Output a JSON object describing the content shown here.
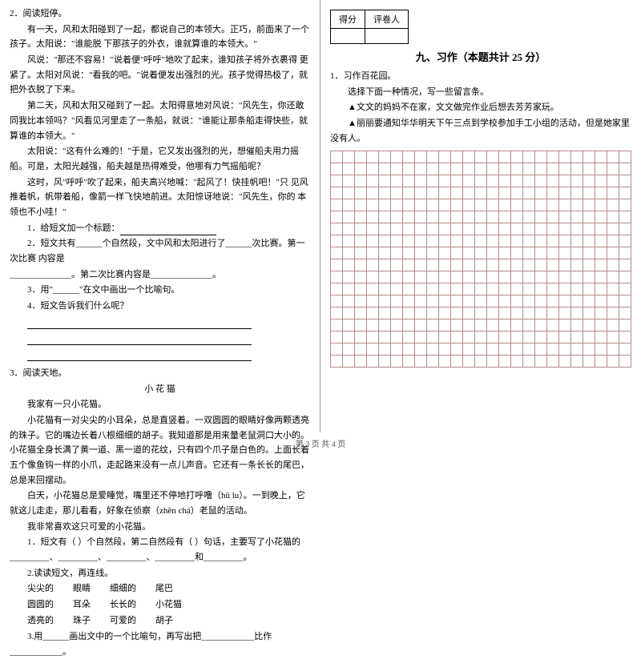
{
  "left": {
    "q2_title": "2．阅读短停。",
    "p1": "有一天，风和太阳碰到了一起，都说自己的本领大。正巧，前面来了一个 孩子。太阳说：\"谁能脱 下那孩子的外衣，谁就算谁的本领大。\"",
    "p2": "风说：\"那还不容易！\"说着便\"呼呼\"地吹了起来，谁知孩子将外衣裹得 更紧了。太阳对风说：\"看我的吧。\"说着便发出强烈的光。孩子觉得热极了，就 把外衣脱了下来。",
    "p3": "第二天，风和太阳又碰到了一起。太阳得意地对风说：\"风先生，你还敢同我比本领吗？\"风看见河里走了一条船，就说：\"谁能让那条船走得快些，就算谁的本领大。\"",
    "p4": "太阳说：\"这有什么难的！\"于是，它又发出强烈的光，想催船夫用力摇 船。可是，太阳光越强，船夫越是热得难受，他哪有力气摇船呢？",
    "p5": "这时，风\"呼呼\"吹了起来，船夫高兴地喊：\"起风了！快挂帆吧！\"只 见风推着帆，帆带着船，像箭一样飞快地前进。太阳惊讶地说：\"风先生，你的 本领也不小哇！\"",
    "sub1": "1．给短文加一个标题：",
    "sub2a": "2．短文共有______个自然段，文中风和太阳进行了______次比赛。第一次比赛        内容是",
    "sub2b": "______________。第二次比赛内容是______________。",
    "sub3": "3．用\"______\"在文中画出一个比喻句。",
    "sub4": "4．短文告诉我们什么呢？",
    "q3_title": "3．阅读天地。",
    "q3_head": "小  花  猫",
    "q3_p1": "我家有一只小花猫。",
    "q3_p2": "小花猫有一对尖尖的小耳朵，总是直竖着。一双圆圆的眼睛好像两颗透亮的珠子。它的嘴边长着八根细细的胡子。我知道那是用来量老鼠洞口大小的。小花猫全身长满了黄一道、黑一道的花纹，只有四个爪子是白色的。上面长着五个像鱼钩一样的小爪，走起路来没有一点儿声音。它还有一条长长的尾巴，总是来回摆动。",
    "q3_p3": "白天，小花猫总是爱睡觉，嘴里还不停地打呼噜（hū  lu）。一到晚上，它就这儿走走，那儿看看，好象在侦察（zhēn  chá）老鼠的活动。",
    "q3_p4": "我非常喜欢这只可爱的小花猫。",
    "q3_sub1": "1．短文有（      ）个自然段，第二自然段有（         ）句话，主要写了小花猫的_________、_________、_________、_________和_________。",
    "q3_sub2": "2.读读短文，再连线。",
    "c1a": "尖尖的",
    "c1b": "眼睛",
    "c1c": "细细的",
    "c1d": "尾巴",
    "c2a": "圆圆的",
    "c2b": "耳朵",
    "c2c": "长长的",
    "c2d": "小花猫",
    "c3a": "透亮的",
    "c3b": "珠子",
    "c3c": "可爱的",
    "c3d": "胡子",
    "q3_sub3": "3.用______画出文中的一个比喻句，再写出把____________比作____________。"
  },
  "right": {
    "score_label1": "得分",
    "score_label2": "评卷人",
    "section": "九、习作（本题共计 25 分）",
    "q1": "1．习作百花园。",
    "q1a": "选择下面一种情况，写一些留言条。",
    "q1b": "▲文文的妈妈不在家，文文做完作业后想去芳芳家玩。",
    "q1c": "▲丽丽要通知华华明天下午三点到学校参加手工小组的活动，但是她家里 没有人。",
    "grid": {
      "rows": 18,
      "cols": 25,
      "cell_color": "#b88"
    }
  },
  "footer": "第 3 页  共 4 页"
}
